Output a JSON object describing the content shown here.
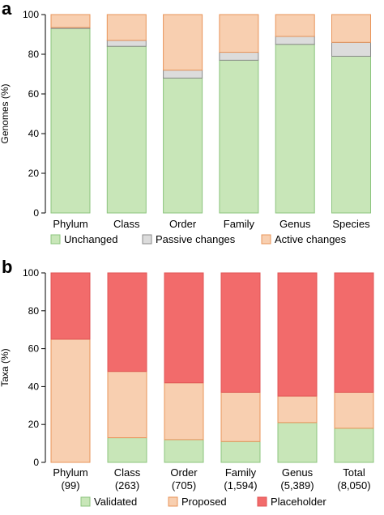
{
  "colors": {
    "unchanged_fill": "#c8e6b8",
    "unchanged_stroke": "#8cc47e",
    "passive_fill": "#dcdcdc",
    "passive_stroke": "#8a8a8a",
    "active_fill": "#f8cfb0",
    "active_stroke": "#e8945a",
    "validated_fill": "#c8e6b8",
    "validated_stroke": "#8cc47e",
    "proposed_fill": "#f8cfb0",
    "proposed_stroke": "#e8945a",
    "placeholder_fill": "#f26b6b",
    "placeholder_stroke": "#e05555"
  },
  "chart_data": [
    {
      "panel": "a",
      "type": "bar",
      "stacked": true,
      "ylabel": "Genomes (%)",
      "ylim": [
        0,
        100
      ],
      "yticks": [
        0,
        20,
        40,
        60,
        80,
        100
      ],
      "categories": [
        "Phylum",
        "Class",
        "Order",
        "Family",
        "Genus",
        "Species"
      ],
      "series": [
        {
          "name": "Unchanged",
          "values": [
            93,
            84,
            68,
            77,
            85,
            79
          ],
          "fill": "unchanged_fill",
          "stroke": "unchanged_stroke"
        },
        {
          "name": "Passive changes",
          "values": [
            0.5,
            3,
            4,
            4,
            4,
            7
          ],
          "fill": "passive_fill",
          "stroke": "passive_stroke"
        },
        {
          "name": "Active changes",
          "values": [
            6.5,
            13,
            28,
            19,
            11,
            14
          ],
          "fill": "active_fill",
          "stroke": "active_stroke"
        }
      ],
      "legend": "bottom"
    },
    {
      "panel": "b",
      "type": "bar",
      "stacked": true,
      "ylabel": "Taxa (%)",
      "ylim": [
        0,
        100
      ],
      "yticks": [
        0,
        20,
        40,
        60,
        80,
        100
      ],
      "categories": [
        "Phylum",
        "Class",
        "Order",
        "Family",
        "Genus",
        "Total"
      ],
      "category_counts": [
        "(99)",
        "(263)",
        "(705)",
        "(1,594)",
        "(5,389)",
        "(8,050)"
      ],
      "series": [
        {
          "name": "Validated",
          "values": [
            0,
            13,
            12,
            11,
            21,
            18
          ],
          "fill": "validated_fill",
          "stroke": "validated_stroke"
        },
        {
          "name": "Proposed",
          "values": [
            65,
            35,
            30,
            26,
            14,
            19
          ],
          "fill": "proposed_fill",
          "stroke": "proposed_stroke"
        },
        {
          "name": "Placeholder",
          "values": [
            35,
            52,
            58,
            63,
            65,
            63
          ],
          "fill": "placeholder_fill",
          "stroke": "placeholder_stroke"
        }
      ],
      "legend": "bottom"
    }
  ]
}
